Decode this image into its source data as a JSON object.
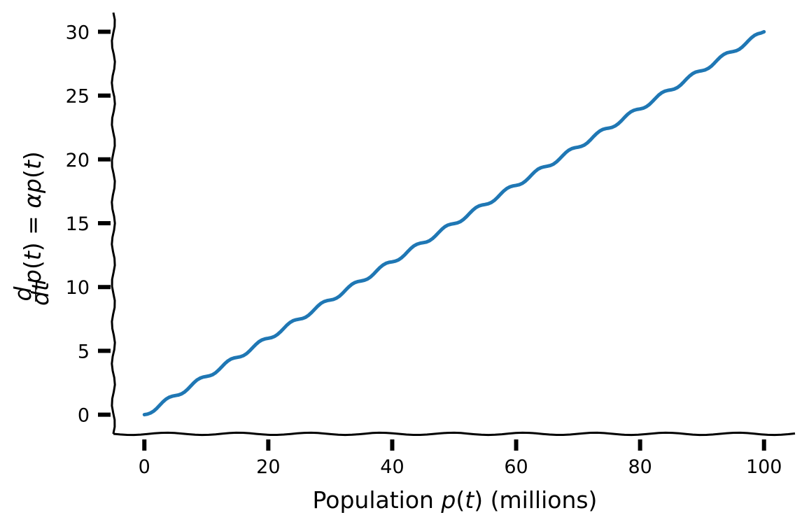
{
  "chart_data": {
    "type": "line",
    "xlabel": {
      "pre": "Population ",
      "var": "p",
      "mid": "(",
      "arg": "t",
      "post": ") (millions)"
    },
    "ylabel": {
      "frac_num": "d",
      "frac_den": "dt",
      "p1": "p",
      "o1": "(",
      "t1": "t",
      "c1": ")",
      "eq": " = ",
      "alpha": "α",
      "p2": "p",
      "o2": "(",
      "t2": "t",
      "c2": ")"
    },
    "xlim": [
      -5,
      105
    ],
    "ylim": [
      -1.5,
      31.5
    ],
    "xticks": [
      0,
      20,
      40,
      60,
      80,
      100
    ],
    "yticks": [
      0,
      5,
      10,
      15,
      20,
      25,
      30
    ],
    "grid": false,
    "legend": "none",
    "series": [
      {
        "color": "#1f77b4",
        "x": [
          0,
          5,
          10,
          15,
          20,
          25,
          30,
          35,
          40,
          45,
          50,
          55,
          60,
          65,
          70,
          75,
          80,
          85,
          90,
          95,
          100
        ],
        "values": [
          0,
          1.5,
          3.0,
          4.5,
          6.0,
          7.5,
          9.0,
          10.5,
          12.0,
          13.5,
          15.0,
          16.5,
          18.0,
          19.5,
          21.0,
          22.5,
          24.0,
          25.5,
          27.0,
          28.5,
          30.0
        ]
      }
    ]
  }
}
